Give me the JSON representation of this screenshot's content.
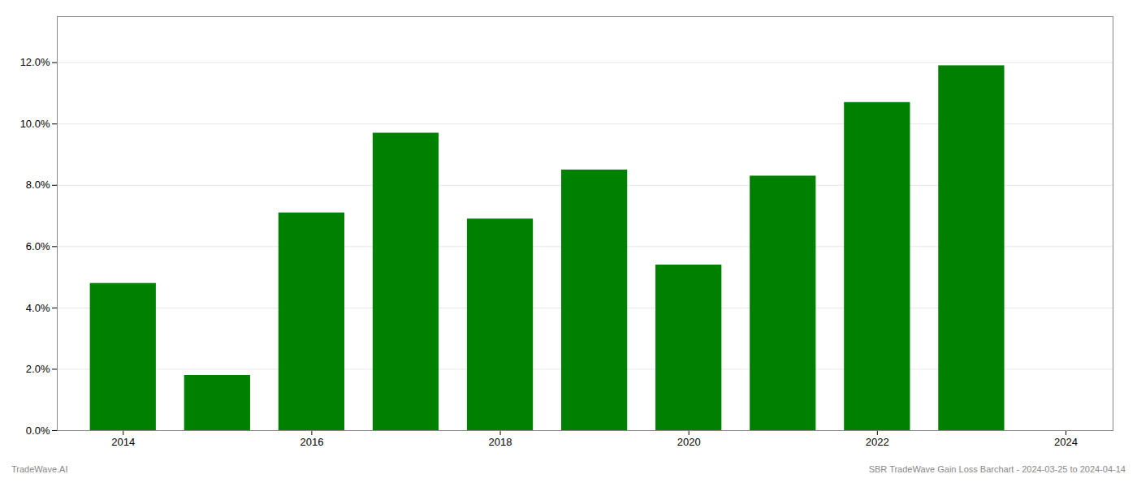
{
  "chart_data": {
    "type": "bar",
    "x": [
      2014,
      2015,
      2016,
      2017,
      2018,
      2019,
      2020,
      2021,
      2022,
      2023
    ],
    "values": [
      0.048,
      0.018,
      0.071,
      0.097,
      0.069,
      0.085,
      0.054,
      0.083,
      0.107,
      0.119
    ],
    "color": "#008000",
    "xlim": [
      2013.3,
      2024.5
    ],
    "xticks": [
      2014,
      2016,
      2018,
      2020,
      2022,
      2024
    ],
    "ylim": [
      0,
      0.135
    ],
    "yticks": [
      {
        "value": 0.0,
        "label": "0.0%"
      },
      {
        "value": 0.02,
        "label": "2.0%"
      },
      {
        "value": 0.04,
        "label": "4.0%"
      },
      {
        "value": 0.06,
        "label": "6.0%"
      },
      {
        "value": 0.08,
        "label": "8.0%"
      },
      {
        "value": 0.1,
        "label": "10.0%"
      },
      {
        "value": 0.12,
        "label": "12.0%"
      }
    ],
    "grid": true,
    "annotations": [
      "TradeWave.AI",
      "SBR TradeWave Gain Loss Barchart - 2024-03-25 to 2024-04-14"
    ]
  }
}
